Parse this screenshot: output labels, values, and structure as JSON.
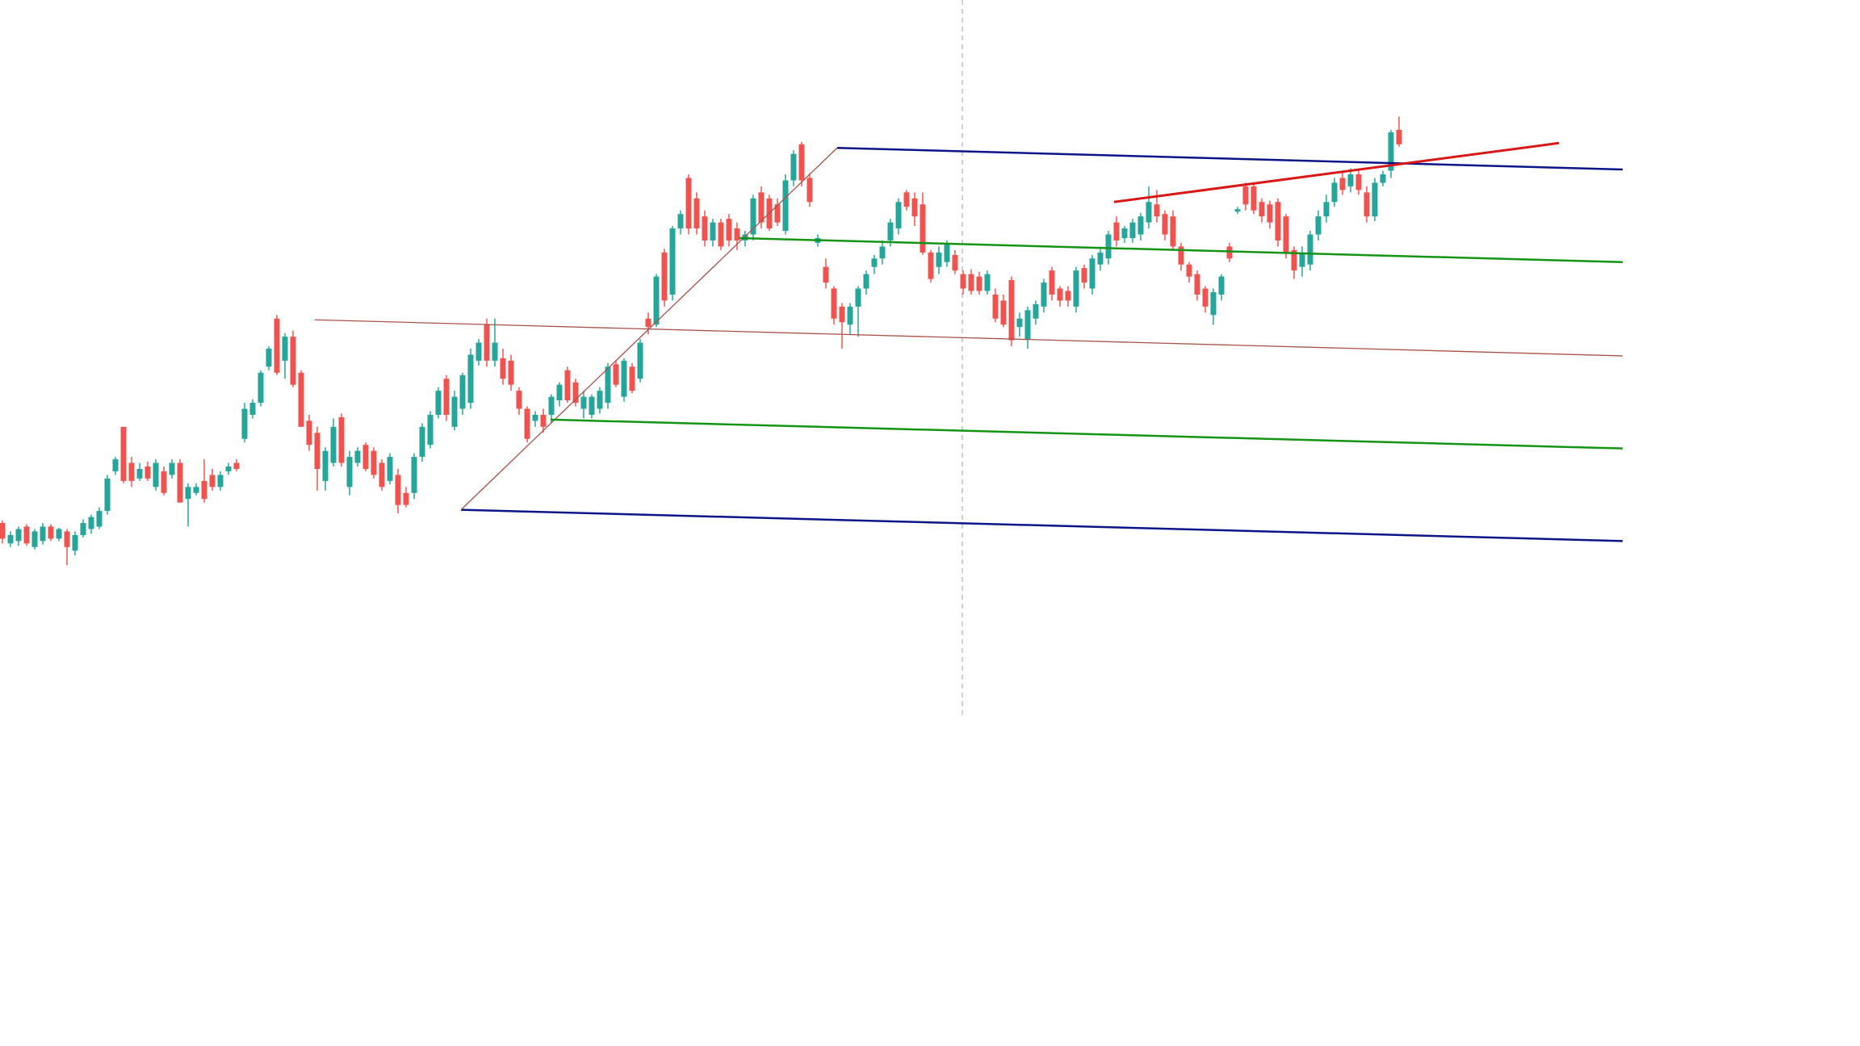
{
  "chart_data": {
    "type": "candlestick",
    "up_color": "#26a69a",
    "down_color": "#ef5350",
    "ylim": [
      30,
      900
    ],
    "candles": [
      [
        465,
        467,
        448,
        452
      ],
      [
        448,
        458,
        445,
        455
      ],
      [
        450,
        462,
        446,
        460
      ],
      [
        462,
        464,
        446,
        448
      ],
      [
        445,
        460,
        443,
        458
      ],
      [
        450,
        465,
        447,
        462
      ],
      [
        462,
        464,
        450,
        452
      ],
      [
        452,
        461,
        450,
        460
      ],
      [
        458,
        460,
        430,
        445
      ],
      [
        442,
        458,
        438,
        455
      ],
      [
        455,
        468,
        453,
        465
      ],
      [
        460,
        472,
        456,
        470
      ],
      [
        462,
        478,
        460,
        475
      ],
      [
        475,
        505,
        472,
        502
      ],
      [
        508,
        520,
        505,
        518
      ],
      [
        545,
        545,
        498,
        500
      ],
      [
        515,
        520,
        495,
        500
      ],
      [
        502,
        515,
        500,
        510
      ],
      [
        512,
        516,
        500,
        502
      ],
      [
        495,
        518,
        492,
        515
      ],
      [
        508,
        512,
        488,
        490
      ],
      [
        505,
        518,
        502,
        515
      ],
      [
        515,
        518,
        482,
        482
      ],
      [
        485,
        498,
        462,
        495
      ],
      [
        490,
        498,
        488,
        495
      ],
      [
        500,
        518,
        482,
        485
      ],
      [
        505,
        510,
        492,
        495
      ],
      [
        495,
        508,
        492,
        505
      ],
      [
        508,
        515,
        505,
        512
      ],
      [
        515,
        518,
        508,
        510
      ],
      [
        535,
        565,
        532,
        560
      ],
      [
        555,
        568,
        552,
        565
      ],
      [
        565,
        592,
        562,
        590
      ],
      [
        595,
        612,
        592,
        610
      ],
      [
        635,
        638,
        588,
        590
      ],
      [
        600,
        623,
        585,
        620
      ],
      [
        620,
        625,
        578,
        580
      ],
      [
        590,
        592,
        545,
        545
      ],
      [
        550,
        555,
        525,
        530
      ],
      [
        540,
        545,
        492,
        510
      ],
      [
        500,
        528,
        492,
        525
      ],
      [
        515,
        552,
        512,
        545
      ],
      [
        553,
        556,
        512,
        515
      ],
      [
        495,
        525,
        488,
        520
      ],
      [
        515,
        528,
        512,
        525
      ],
      [
        530,
        532,
        508,
        510
      ],
      [
        525,
        528,
        502,
        505
      ],
      [
        515,
        518,
        492,
        495
      ],
      [
        500,
        523,
        497,
        520
      ],
      [
        505,
        510,
        473,
        480
      ],
      [
        490,
        495,
        478,
        480
      ],
      [
        490,
        523,
        485,
        520
      ],
      [
        520,
        548,
        516,
        545
      ],
      [
        530,
        558,
        527,
        555
      ],
      [
        555,
        578,
        552,
        575
      ],
      [
        585,
        588,
        550,
        555
      ],
      [
        545,
        575,
        542,
        570
      ],
      [
        560,
        590,
        555,
        588
      ],
      [
        565,
        610,
        560,
        605
      ],
      [
        600,
        618,
        596,
        615
      ],
      [
        630,
        635,
        595,
        600
      ],
      [
        600,
        635,
        595,
        615
      ],
      [
        602,
        610,
        580,
        585
      ],
      [
        600,
        605,
        575,
        580
      ],
      [
        575,
        578,
        555,
        560
      ],
      [
        560,
        562,
        532,
        535
      ],
      [
        550,
        558,
        545,
        555
      ],
      [
        555,
        560,
        540,
        545
      ],
      [
        555,
        572,
        548,
        570
      ],
      [
        567,
        582,
        562,
        580
      ],
      [
        592,
        595,
        565,
        567
      ],
      [
        582,
        585,
        562,
        565
      ],
      [
        560,
        575,
        552,
        570
      ],
      [
        555,
        572,
        552,
        570
      ],
      [
        560,
        578,
        556,
        575
      ],
      [
        565,
        598,
        560,
        595
      ],
      [
        597,
        600,
        578,
        580
      ],
      [
        570,
        602,
        566,
        600
      ],
      [
        595,
        598,
        573,
        575
      ],
      [
        585,
        618,
        582,
        615
      ],
      [
        635,
        640,
        622,
        628
      ],
      [
        630,
        672,
        628,
        670
      ],
      [
        690,
        693,
        645,
        650
      ],
      [
        655,
        712,
        650,
        710
      ],
      [
        710,
        725,
        705,
        722
      ],
      [
        752,
        755,
        705,
        710
      ],
      [
        735,
        740,
        705,
        710
      ],
      [
        720,
        725,
        695,
        700
      ],
      [
        700,
        718,
        695,
        715
      ],
      [
        715,
        718,
        692,
        695
      ],
      [
        718,
        722,
        695,
        700
      ],
      [
        710,
        715,
        692,
        700
      ],
      [
        700,
        708,
        695,
        705
      ],
      [
        705,
        738,
        700,
        735
      ],
      [
        740,
        745,
        710,
        715
      ],
      [
        735,
        738,
        708,
        710
      ],
      [
        730,
        735,
        712,
        715
      ],
      [
        708,
        755,
        705,
        750
      ],
      [
        750,
        775,
        745,
        772
      ],
      [
        780,
        782,
        745,
        750
      ],
      [
        752,
        756,
        728,
        732
      ],
      [
        698,
        705,
        695,
        702
      ],
      [
        678,
        685,
        660,
        665
      ],
      [
        660,
        662,
        630,
        635
      ],
      [
        645,
        648,
        610,
        632
      ],
      [
        630,
        648,
        622,
        645
      ],
      [
        645,
        662,
        620,
        660
      ],
      [
        660,
        675,
        655,
        672
      ],
      [
        678,
        688,
        672,
        685
      ],
      [
        685,
        700,
        680,
        695
      ],
      [
        700,
        718,
        695,
        715
      ],
      [
        710,
        735,
        705,
        732
      ],
      [
        740,
        742,
        725,
        728
      ],
      [
        735,
        740,
        712,
        720
      ],
      [
        730,
        740,
        688,
        690
      ],
      [
        690,
        692,
        665,
        668
      ],
      [
        678,
        695,
        672,
        690
      ],
      [
        682,
        700,
        678,
        697
      ],
      [
        688,
        692,
        672,
        675
      ],
      [
        672,
        675,
        655,
        660
      ],
      [
        672,
        676,
        655,
        658
      ],
      [
        670,
        674,
        655,
        658
      ],
      [
        658,
        675,
        655,
        672
      ],
      [
        655,
        660,
        632,
        635
      ],
      [
        650,
        655,
        628,
        630
      ],
      [
        667,
        670,
        612,
        617
      ],
      [
        628,
        640,
        620,
        635
      ],
      [
        618,
        645,
        610,
        642
      ],
      [
        635,
        650,
        630,
        647
      ],
      [
        645,
        668,
        640,
        665
      ],
      [
        675,
        678,
        650,
        655
      ],
      [
        660,
        662,
        645,
        650
      ],
      [
        658,
        662,
        645,
        650
      ],
      [
        645,
        678,
        640,
        675
      ],
      [
        677,
        680,
        660,
        665
      ],
      [
        660,
        688,
        655,
        685
      ],
      [
        680,
        695,
        675,
        690
      ],
      [
        685,
        708,
        680,
        705
      ],
      [
        715,
        720,
        695,
        700
      ],
      [
        702,
        712,
        698,
        710
      ],
      [
        702,
        718,
        698,
        715
      ],
      [
        705,
        723,
        700,
        720
      ],
      [
        715,
        745,
        710,
        732
      ],
      [
        730,
        742,
        715,
        720
      ],
      [
        722,
        725,
        700,
        705
      ],
      [
        720,
        725,
        692,
        695
      ],
      [
        695,
        698,
        675,
        680
      ],
      [
        680,
        682,
        665,
        670
      ],
      [
        672,
        675,
        650,
        655
      ],
      [
        660,
        662,
        640,
        645
      ],
      [
        638,
        660,
        630,
        657
      ],
      [
        655,
        672,
        650,
        670
      ],
      [
        695,
        698,
        682,
        685
      ],
      [
        724,
        728,
        722,
        726
      ],
      [
        745,
        748,
        725,
        730
      ],
      [
        745,
        748,
        722,
        725
      ],
      [
        732,
        735,
        715,
        720
      ],
      [
        730,
        733,
        710,
        715
      ],
      [
        732,
        735,
        695,
        700
      ],
      [
        720,
        722,
        685,
        690
      ],
      [
        692,
        695,
        668,
        675
      ],
      [
        678,
        695,
        670,
        690
      ],
      [
        680,
        708,
        675,
        705
      ],
      [
        705,
        725,
        700,
        720
      ],
      [
        720,
        738,
        715,
        732
      ],
      [
        732,
        752,
        728,
        748
      ],
      [
        752,
        758,
        738,
        742
      ],
      [
        745,
        760,
        740,
        755
      ],
      [
        755,
        760,
        738,
        742
      ],
      [
        740,
        745,
        715,
        720
      ],
      [
        720,
        752,
        716,
        748
      ],
      [
        748,
        758,
        745,
        755
      ],
      [
        758,
        792,
        752,
        790
      ],
      [
        792,
        803,
        778,
        780
      ]
    ],
    "drawings": [
      {
        "color": "#0b1587",
        "line_width": 2.5,
        "points": [
          [
            103.4,
            777
          ],
          [
            200.7,
            759
          ]
        ]
      },
      {
        "color": "#0b1587",
        "line_width": 2.5,
        "points": [
          [
            56.8,
            476
          ],
          [
            200.7,
            450
          ]
        ]
      },
      {
        "color": "#a8524a",
        "line_width": 1.3,
        "points": [
          [
            56.8,
            476
          ],
          [
            103.4,
            777
          ]
        ]
      },
      {
        "color": "#a8524a",
        "line_width": 1.3,
        "points": [
          [
            38.7,
            634
          ],
          [
            200.7,
            604
          ]
        ]
      },
      {
        "color": "#149414",
        "line_width": 2.5,
        "points": [
          [
            91.3,
            702
          ],
          [
            200.7,
            682
          ]
        ]
      },
      {
        "color": "#149414",
        "line_width": 2.5,
        "points": [
          [
            67.9,
            551
          ],
          [
            200.7,
            527
          ]
        ]
      },
      {
        "color": "#d81717",
        "line_width": 3,
        "points": [
          [
            137.7,
            732
          ],
          [
            192.8,
            781
          ]
        ]
      }
    ]
  }
}
